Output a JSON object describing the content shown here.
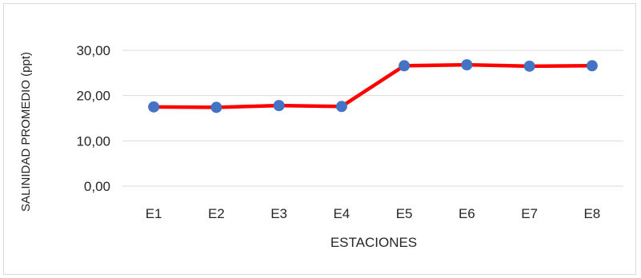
{
  "chart_data": {
    "type": "line",
    "title": "",
    "xlabel": "ESTACIONES",
    "ylabel": "SALINIDAD PROMEDIO (ppt)",
    "categories": [
      "E1",
      "E2",
      "E3",
      "E4",
      "E5",
      "E6",
      "E7",
      "E8"
    ],
    "series": [
      {
        "values": [
          17.5,
          17.4,
          17.8,
          17.6,
          26.6,
          26.8,
          26.5,
          26.6
        ]
      }
    ],
    "ylim": [
      0,
      30
    ],
    "yticks": [
      0,
      10,
      20,
      30
    ],
    "ytick_labels": [
      "0,00",
      "10,00",
      "20,00",
      "30,00"
    ],
    "grid": true,
    "legend": "none",
    "colors": {
      "line": "#ff0000",
      "marker": "#4472c4",
      "grid": "#d9d9d9"
    }
  }
}
